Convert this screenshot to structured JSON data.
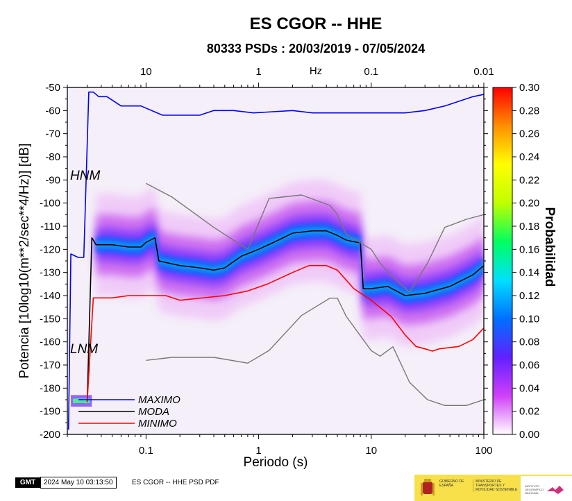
{
  "chart_data": {
    "type": "heatmap",
    "title": "ES CGOR -- HHE",
    "subtitle": "80333 PSDs : 20/03/2019 - 07/05/2024",
    "xlabel": "Periodo (s)",
    "ylabel": "Potencia [10log10(m**2/sec**4/Hz)] [dB]",
    "top_axis_unit": "Hz",
    "x_scale": "log",
    "xlim": [
      0.02,
      100
    ],
    "ylim": [
      -200,
      -50
    ],
    "x_ticks": [
      {
        "value": 0.1,
        "label": "0.1"
      },
      {
        "value": 1,
        "label": "1"
      },
      {
        "value": 10,
        "label": "10"
      },
      {
        "value": 100,
        "label": "100"
      }
    ],
    "top_ticks": [
      {
        "value": 0.1,
        "label": "10"
      },
      {
        "value": 1,
        "label": "1"
      },
      {
        "value": 10,
        "label": "0.1"
      },
      {
        "value": 100,
        "label": "0.01"
      }
    ],
    "y_ticks": [
      -50,
      -60,
      -70,
      -80,
      -90,
      -100,
      -110,
      -120,
      -130,
      -140,
      -150,
      -160,
      -170,
      -180,
      -190,
      -200
    ],
    "colorbar": {
      "label": "Probabilidad",
      "range": [
        0,
        0.3
      ],
      "ticks": [
        "0.00",
        "0.02",
        "0.04",
        "0.06",
        "0.08",
        "0.10",
        "0.12",
        "0.14",
        "0.16",
        "0.18",
        "0.20",
        "0.22",
        "0.24",
        "0.26",
        "0.28",
        "0.30"
      ],
      "colors": [
        "#ffffff",
        "#d040f8",
        "#6020ff",
        "#0070ff",
        "#00e0ff",
        "#00ff60",
        "#c0ff00",
        "#ffff00",
        "#ff9000",
        "#ff0000"
      ]
    },
    "model_labels": {
      "high": "HNM",
      "low": "LNM"
    },
    "legend": [
      {
        "name": "MAXIMO",
        "color": "#0000ff"
      },
      {
        "name": "MODA",
        "color": "#000000"
      },
      {
        "name": "MINIMO",
        "color": "#ff0000"
      }
    ],
    "series": [
      {
        "key": "max",
        "color": "#0000ff",
        "points": [
          [
            0.0205,
            -198
          ],
          [
            0.0215,
            -122
          ],
          [
            0.025,
            -123.5
          ],
          [
            0.028,
            -123.5
          ],
          [
            0.031,
            -52
          ],
          [
            0.034,
            -52
          ],
          [
            0.038,
            -54
          ],
          [
            0.045,
            -54
          ],
          [
            0.06,
            -58
          ],
          [
            0.09,
            -58
          ],
          [
            0.14,
            -62
          ],
          [
            0.3,
            -62
          ],
          [
            0.4,
            -60
          ],
          [
            0.6,
            -60
          ],
          [
            0.9,
            -61
          ],
          [
            2,
            -60
          ],
          [
            3,
            -61
          ],
          [
            8,
            -61
          ],
          [
            20,
            -61
          ],
          [
            30,
            -60
          ],
          [
            45,
            -58
          ],
          [
            60,
            -56
          ],
          [
            80,
            -54
          ],
          [
            100,
            -53
          ]
        ]
      },
      {
        "key": "mode",
        "color": "#000000",
        "points": [
          [
            0.03,
            -186
          ],
          [
            0.033,
            -115
          ],
          [
            0.036,
            -118
          ],
          [
            0.05,
            -118
          ],
          [
            0.07,
            -119
          ],
          [
            0.09,
            -119
          ],
          [
            0.1,
            -117
          ],
          [
            0.12,
            -115
          ],
          [
            0.13,
            -125
          ],
          [
            0.16,
            -126
          ],
          [
            0.2,
            -127
          ],
          [
            0.3,
            -128
          ],
          [
            0.4,
            -129
          ],
          [
            0.5,
            -128
          ],
          [
            0.7,
            -123
          ],
          [
            1,
            -120
          ],
          [
            1.5,
            -116
          ],
          [
            2,
            -113
          ],
          [
            3,
            -112
          ],
          [
            4,
            -112
          ],
          [
            5,
            -114
          ],
          [
            6,
            -116
          ],
          [
            7.5,
            -117
          ],
          [
            8,
            -117
          ],
          [
            8.5,
            -137
          ],
          [
            10,
            -137
          ],
          [
            14,
            -136
          ],
          [
            20,
            -140
          ],
          [
            30,
            -139
          ],
          [
            50,
            -136
          ],
          [
            80,
            -131
          ],
          [
            100,
            -127
          ]
        ]
      },
      {
        "key": "min",
        "color": "#ff0000",
        "points": [
          [
            0.03,
            -186
          ],
          [
            0.034,
            -141
          ],
          [
            0.05,
            -141
          ],
          [
            0.07,
            -140
          ],
          [
            0.1,
            -140
          ],
          [
            0.15,
            -140
          ],
          [
            0.2,
            -142
          ],
          [
            0.5,
            -140
          ],
          [
            0.8,
            -138
          ],
          [
            1.2,
            -135
          ],
          [
            2,
            -130
          ],
          [
            2.8,
            -127
          ],
          [
            4,
            -127
          ],
          [
            5,
            -129
          ],
          [
            7,
            -137
          ],
          [
            10,
            -142
          ],
          [
            15,
            -149
          ],
          [
            20,
            -157
          ],
          [
            25,
            -162
          ],
          [
            30,
            -163
          ],
          [
            35,
            -164
          ],
          [
            40,
            -163
          ],
          [
            60,
            -162
          ],
          [
            80,
            -159
          ],
          [
            100,
            -154
          ]
        ]
      },
      {
        "key": "nhnm",
        "color": "#777777",
        "points": [
          [
            0.1,
            -91.5
          ],
          [
            0.17,
            -97.4
          ],
          [
            0.4,
            -110.5
          ],
          [
            0.8,
            -120
          ],
          [
            1.24,
            -98
          ],
          [
            2.4,
            -96.5
          ],
          [
            4.3,
            -101
          ],
          [
            5,
            -105
          ],
          [
            6,
            -113.5
          ],
          [
            10,
            -120
          ],
          [
            12,
            -126
          ],
          [
            15.6,
            -132
          ],
          [
            21.9,
            -138.5
          ],
          [
            31.6,
            -126
          ],
          [
            45,
            -110.5
          ],
          [
            70,
            -107
          ],
          [
            100,
            -105
          ]
        ]
      },
      {
        "key": "nlnm",
        "color": "#777777",
        "points": [
          [
            0.1,
            -168
          ],
          [
            0.17,
            -166.7
          ],
          [
            0.4,
            -166.7
          ],
          [
            0.8,
            -169.2
          ],
          [
            1.24,
            -163.7
          ],
          [
            2.4,
            -148.6
          ],
          [
            4.3,
            -141.1
          ],
          [
            5,
            -141.1
          ],
          [
            6,
            -149
          ],
          [
            10,
            -163.8
          ],
          [
            12,
            -166.2
          ],
          [
            15.6,
            -162.1
          ],
          [
            21.9,
            -177.5
          ],
          [
            31.6,
            -185
          ],
          [
            45,
            -187.5
          ],
          [
            70,
            -187.5
          ],
          [
            100,
            -185
          ]
        ]
      }
    ]
  },
  "footer": {
    "gmt_badge": "GMT",
    "timestamp": "2024 May 10 03:13:50",
    "caption": "ES CGOR -- HHE PSD PDF",
    "logo_left_1": "GOBIERNO DE ESPAÑA",
    "logo_left_2": "MINISTERIO DE TRANSPORTES Y MOVILIDAD SOSTENIBLE",
    "logo_right": "INSTITUTO GEOGRÁFICO NACIONAL"
  }
}
